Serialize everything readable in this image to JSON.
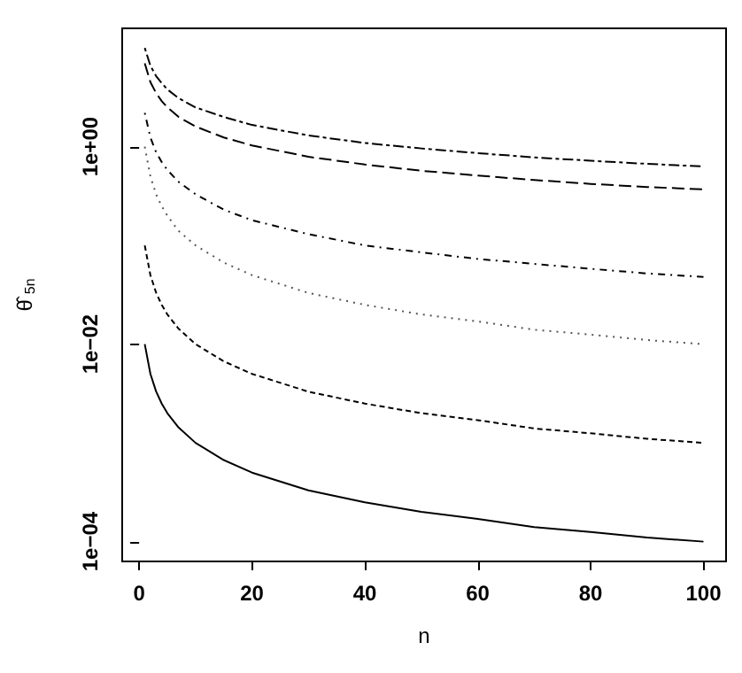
{
  "chart_data": {
    "type": "line",
    "xlabel": "n",
    "ylabel": "θ̂$_{5n}$",
    "log": "y",
    "grid": false,
    "marker": "none",
    "x": [
      1,
      2,
      3,
      4,
      5,
      7,
      10,
      15,
      20,
      30,
      40,
      50,
      60,
      70,
      80,
      90,
      100
    ],
    "xlim": [
      -3,
      104
    ],
    "xticks": [
      0,
      20,
      40,
      60,
      80,
      100
    ],
    "ylim": [
      6.3e-05,
      15.8
    ],
    "yticks": [
      {
        "value": 0.0001,
        "label": "1e−04"
      },
      {
        "value": 0.01,
        "label": "1e−02"
      },
      {
        "value": 1,
        "label": "1e+00"
      }
    ],
    "series": [
      {
        "color": "#000000",
        "line_style": "solid",
        "values": [
          0.01,
          0.005,
          0.00333,
          0.0025,
          0.002,
          0.00143,
          0.001,
          0.00067,
          0.0005,
          0.00033,
          0.00025,
          0.0002,
          0.00017,
          0.00014,
          0.000125,
          0.00011,
          0.0001
        ]
      },
      {
        "color": "#000000",
        "line_style": "dashed",
        "values": [
          0.1,
          0.05,
          0.0333,
          0.025,
          0.02,
          0.0143,
          0.01,
          0.0067,
          0.005,
          0.0033,
          0.0025,
          0.002,
          0.0017,
          0.0014,
          0.00125,
          0.0011,
          0.001
        ]
      },
      {
        "color": "#555555",
        "line_style": "dotted",
        "values": [
          1,
          0.5,
          0.33,
          0.25,
          0.2,
          0.14,
          0.1,
          0.067,
          0.05,
          0.033,
          0.025,
          0.02,
          0.017,
          0.014,
          0.0125,
          0.011,
          0.01
        ]
      },
      {
        "color": "#000000",
        "line_style": "dashdot",
        "values": [
          2.2,
          1.24,
          0.88,
          0.7,
          0.58,
          0.44,
          0.33,
          0.23,
          0.18,
          0.13,
          0.1,
          0.085,
          0.073,
          0.065,
          0.058,
          0.052,
          0.048
        ]
      },
      {
        "color": "#000000",
        "line_style": "longdash",
        "values": [
          7,
          4.5,
          3.5,
          2.9,
          2.5,
          2,
          1.6,
          1.24,
          1.03,
          0.79,
          0.66,
          0.57,
          0.51,
          0.46,
          0.42,
          0.39,
          0.37
        ]
      },
      {
        "color": "#000000",
        "line_style": "twodash",
        "values": [
          10,
          6.6,
          5.2,
          4.4,
          3.8,
          3.1,
          2.5,
          2,
          1.66,
          1.3,
          1.09,
          0.96,
          0.86,
          0.78,
          0.72,
          0.67,
          0.63
        ]
      }
    ]
  }
}
